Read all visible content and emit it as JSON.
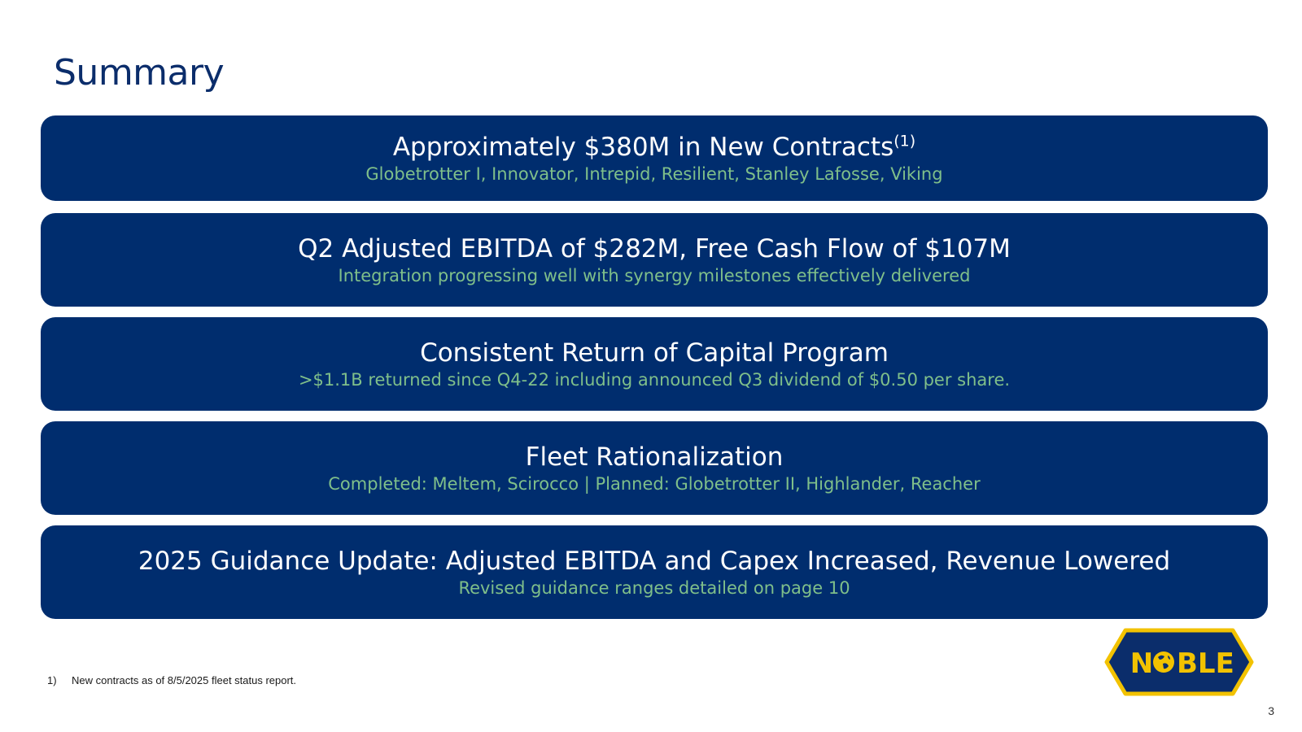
{
  "slide": {
    "title": "Summary",
    "page_number": "3"
  },
  "cards": [
    {
      "headline": "Approximately $380M in New Contracts",
      "headline_sup": "(1)",
      "subtext": "Globetrotter I, Innovator, Intrepid, Resilient, Stanley Lafosse, Viking"
    },
    {
      "headline": "Q2 Adjusted EBITDA of $282M, Free Cash Flow of $107M",
      "subtext": "Integration progressing well with synergy milestones effectively delivered"
    },
    {
      "headline": "Consistent Return of Capital Program",
      "subtext": ">$1.1B returned since Q4-22 including announced Q3 dividend of $0.50 per share."
    },
    {
      "headline": "Fleet Rationalization",
      "subtext": "Completed: Meltem, Scirocco | Planned: Globetrotter II, Highlander, Reacher"
    },
    {
      "headline": "2025 Guidance Update: Adjusted EBITDA and Capex Increased, Revenue Lowered",
      "subtext": "Revised guidance ranges detailed on page 10"
    }
  ],
  "footnote": {
    "number": "1)",
    "text": "New contracts as of 8/5/2025 fleet status report."
  },
  "logo": {
    "text": "NOBLE",
    "icon": "globe-icon",
    "colors": {
      "fill": "#0b2d6b",
      "outline": "#f2c200",
      "text": "#f2c200"
    }
  },
  "colors": {
    "card_background": "#002d6e",
    "headline": "#ffffff",
    "subtext": "#7fbf8a",
    "title": "#0b2d6b"
  }
}
